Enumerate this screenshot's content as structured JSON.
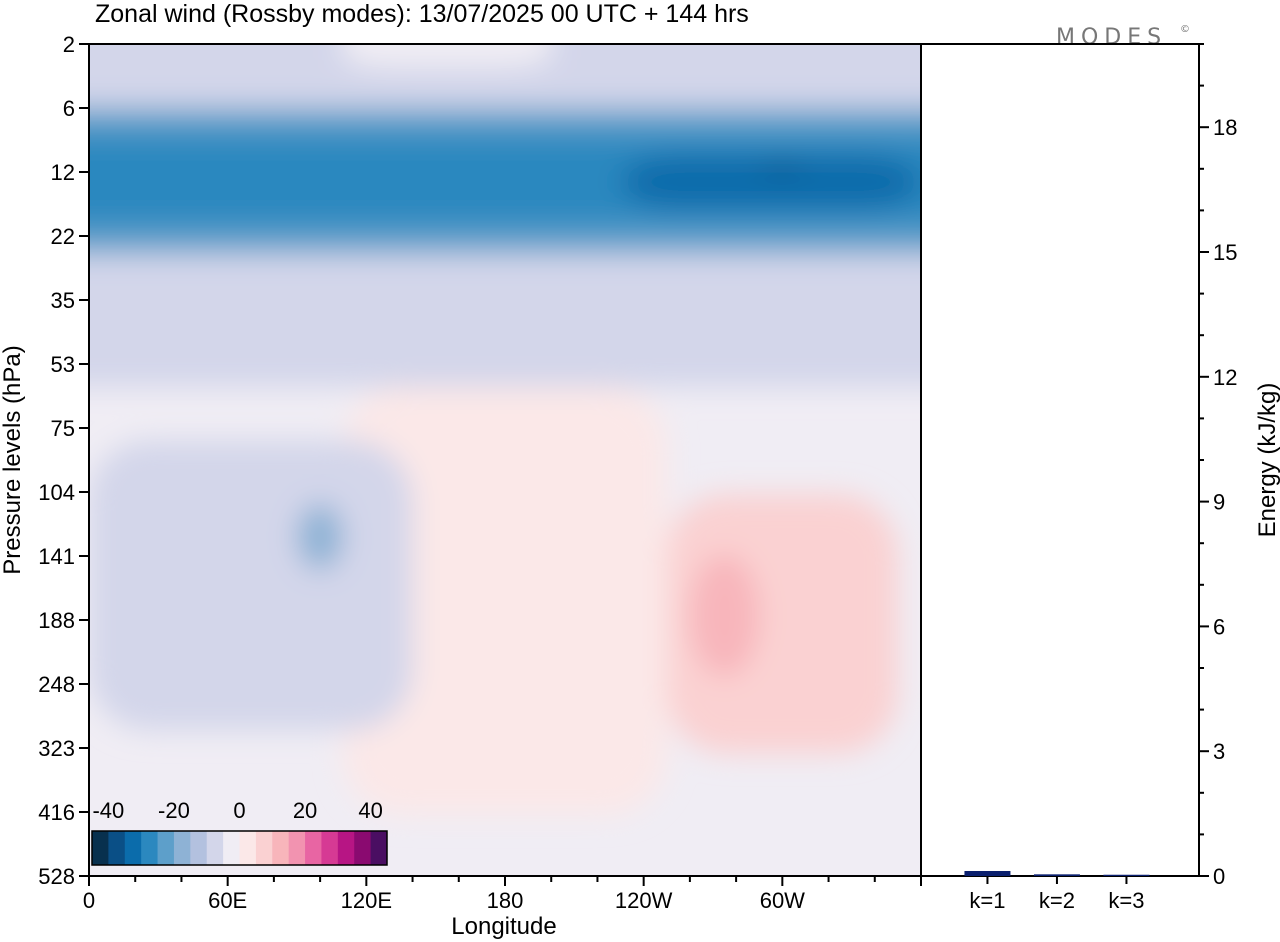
{
  "brand": {
    "logo_text": "MODES",
    "logo_mark": "©"
  },
  "chart_data": [
    {
      "type": "heatmap",
      "title": "Zonal wind (Rossby modes):  13/07/2025  00 UTC  + 144 hrs",
      "xlabel": "Longitude",
      "ylabel": "Pressure levels (hPa)",
      "x_tick_labels": [
        "0",
        "60E",
        "120E",
        "180",
        "120W",
        "60W"
      ],
      "x_tick_degrees": [
        0,
        60,
        120,
        180,
        240,
        300
      ],
      "xlim_degrees": [
        0,
        360
      ],
      "y_tick_labels": [
        "2",
        "6",
        "12",
        "22",
        "35",
        "53",
        "75",
        "104",
        "141",
        "188",
        "248",
        "323",
        "416",
        "528"
      ],
      "colorbar": {
        "labels": [
          "-40",
          "-20",
          "0",
          "20",
          "40"
        ],
        "label_values": [
          -40,
          -20,
          0,
          20,
          40
        ],
        "range": [
          -45,
          45
        ],
        "step": 5,
        "colors": [
          "#08304e",
          "#0a4f86",
          "#0b6cab",
          "#2b88bf",
          "#5d9fca",
          "#8eb2d5",
          "#b3c1df",
          "#d3d6ea",
          "#f0edf4",
          "#fbe8e8",
          "#fad1d2",
          "#f8b5bb",
          "#f293b0",
          "#e865a3",
          "#d63a94",
          "#b71584",
          "#8a0a70",
          "#4a0e62"
        ]
      },
      "fields": [
        {
          "value": -2,
          "lon": [
            0,
            360
          ],
          "pressure": [
            2,
            528
          ]
        },
        {
          "value": -17,
          "lon": [
            0,
            360
          ],
          "pressure": [
            2,
            30
          ]
        },
        {
          "value": -10,
          "lon": [
            0,
            360
          ],
          "pressure": [
            2,
            45
          ]
        },
        {
          "value": -6,
          "lon": [
            0,
            360
          ],
          "pressure": [
            2,
            60
          ]
        },
        {
          "value": -22,
          "lon": [
            0,
            360
          ],
          "pressure": [
            6,
            25
          ]
        },
        {
          "value": -27,
          "lon": [
            0,
            360
          ],
          "pressure": [
            8,
            20
          ]
        },
        {
          "value": -32,
          "lon": [
            230,
            360
          ],
          "pressure": [
            10,
            17
          ]
        },
        {
          "value": -38,
          "lon": [
            290,
            310
          ],
          "pressure": [
            11,
            12
          ]
        },
        {
          "value": -6,
          "lon": [
            70,
            210
          ],
          "pressure": [
            2,
            4
          ]
        },
        {
          "value": -2,
          "lon": [
            110,
            200
          ],
          "pressure": [
            2,
            3
          ]
        },
        {
          "value": 2,
          "lon": [
            110,
            250
          ],
          "pressure": [
            60,
            420
          ]
        },
        {
          "value": 7,
          "lon": [
            250,
            350
          ],
          "pressure": [
            105,
            330
          ]
        },
        {
          "value": 12,
          "lon": [
            260,
            290
          ],
          "pressure": [
            140,
            240
          ]
        },
        {
          "value": -6,
          "lon": [
            0,
            140
          ],
          "pressure": [
            80,
            300
          ]
        },
        {
          "value": -10,
          "lon": [
            60,
            130
          ],
          "pressure": [
            110,
            210
          ]
        },
        {
          "value": -17,
          "lon": [
            90,
            110
          ],
          "pressure": [
            110,
            150
          ]
        }
      ]
    },
    {
      "type": "bar",
      "categories": [
        "k=1",
        "k=2",
        "k=3"
      ],
      "values": [
        0.12,
        0.04,
        0.03
      ],
      "ylabel": "Energy (kJ/kg)",
      "ylim": [
        0,
        20
      ],
      "y_ticks": [
        0,
        3,
        6,
        9,
        12,
        15,
        18
      ],
      "color": "#0a1f6e"
    }
  ]
}
